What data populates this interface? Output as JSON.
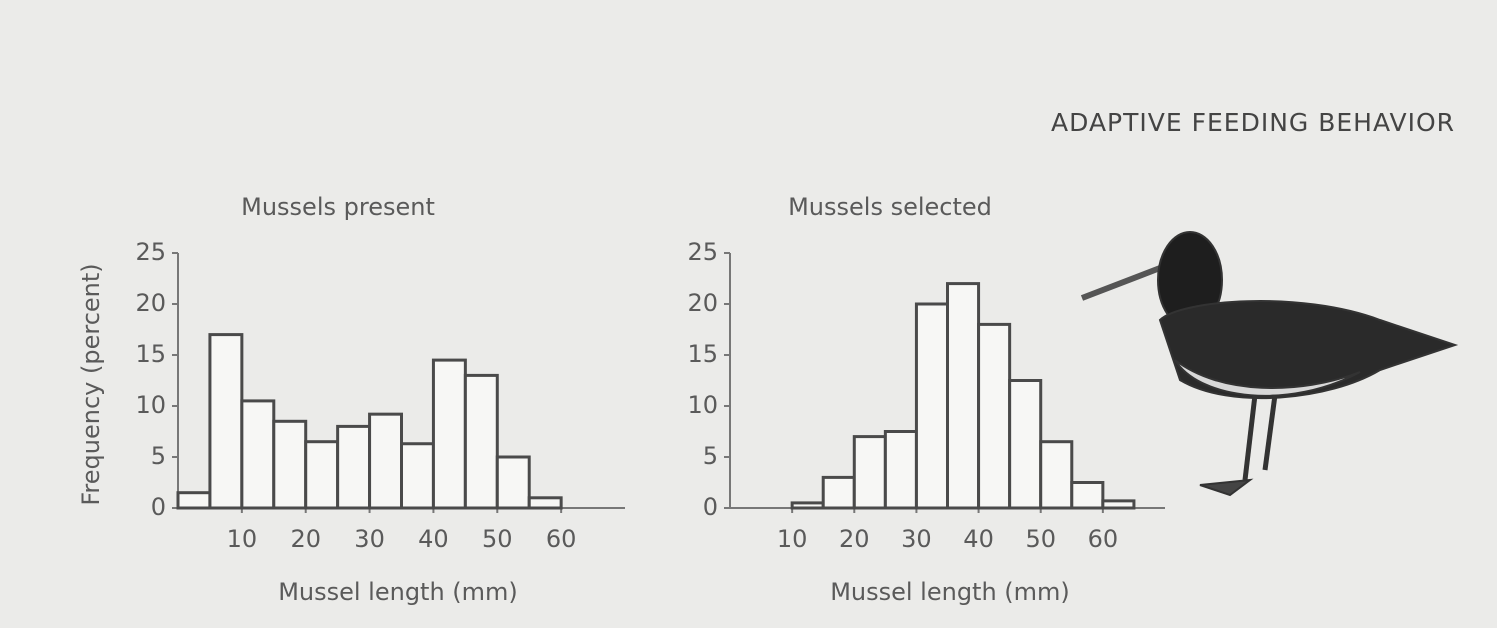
{
  "header": "ADAPTIVE FEEDING BEHAVIOR",
  "chart_data": [
    {
      "type": "histogram",
      "title": "Mussels present",
      "xlabel": "Mussel length (mm)",
      "ylabel": "Frequency (percent)",
      "bins": [
        0,
        5,
        10,
        15,
        20,
        25,
        30,
        35,
        40,
        45,
        50,
        55,
        60
      ],
      "values": [
        1.5,
        17,
        10.5,
        8.5,
        6.5,
        8,
        9.2,
        6.3,
        14.5,
        13,
        5,
        1
      ],
      "color": "#4a4a4a",
      "xlim": [
        0,
        70
      ],
      "xticks": [
        10,
        20,
        30,
        40,
        50,
        60
      ],
      "ylim": [
        0,
        25
      ],
      "yticks": [
        0,
        5,
        10,
        15,
        20,
        25
      ]
    },
    {
      "type": "histogram",
      "title": "Mussels selected",
      "xlabel": "Mussel length (mm)",
      "bins": [
        10,
        15,
        20,
        25,
        30,
        35,
        40,
        45,
        50,
        55,
        60,
        65
      ],
      "values": [
        0.5,
        3,
        7,
        7.5,
        20,
        22,
        18,
        12.5,
        6.5,
        2.5,
        0.7
      ],
      "color": "#4a4a4a",
      "xlim": [
        0,
        70
      ],
      "xticks": [
        10,
        20,
        30,
        40,
        50,
        60
      ],
      "ylim": [
        0,
        25
      ],
      "yticks": [
        0,
        5,
        10,
        15,
        20,
        25
      ]
    }
  ]
}
